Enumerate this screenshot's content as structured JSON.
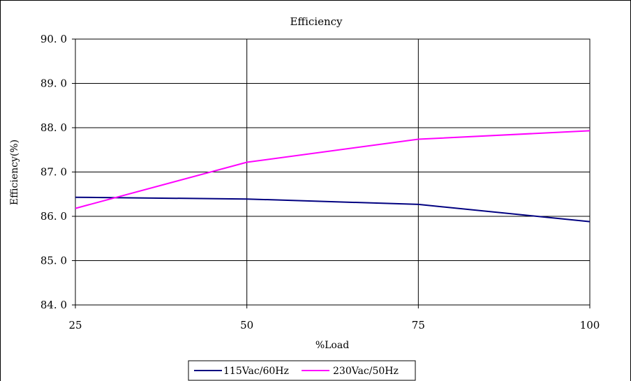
{
  "chart_data": {
    "type": "line",
    "title": "Efficiency",
    "xlabel": "%Load",
    "ylabel": "Efficiency(%)",
    "x": [
      25,
      50,
      75,
      100
    ],
    "x_tick_labels": [
      "25",
      "50",
      "75",
      "100"
    ],
    "ylim": [
      84.0,
      90.0
    ],
    "y_ticks": [
      84.0,
      85.0,
      86.0,
      87.0,
      88.0,
      89.0,
      90.0
    ],
    "y_tick_labels": [
      "84. 0",
      "85. 0",
      "86. 0",
      "87. 0",
      "88. 0",
      "89. 0",
      "90. 0"
    ],
    "grid": true,
    "legend_position": "bottom",
    "series": [
      {
        "name": "115Vac/60Hz",
        "color": "#000080",
        "values": [
          86.43,
          86.39,
          86.27,
          85.88
        ]
      },
      {
        "name": "230Vac/50Hz",
        "color": "#ff00ff",
        "values": [
          86.18,
          87.22,
          87.74,
          87.93
        ]
      }
    ]
  }
}
